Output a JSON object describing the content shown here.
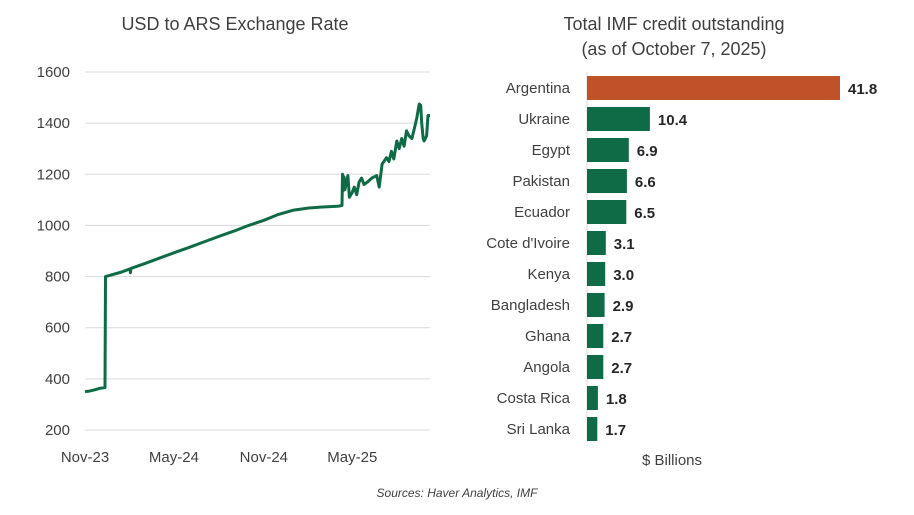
{
  "source": "Sources: Haver Analytics, IMF",
  "chart_data": [
    {
      "type": "line",
      "title": "USD to ARS Exchange Rate",
      "xlabel": "",
      "ylabel": "",
      "ylim": [
        200,
        1600
      ],
      "yticks": [
        200,
        400,
        600,
        800,
        1000,
        1200,
        1400,
        1600
      ],
      "xticklabels": [
        "Nov-23",
        "May-24",
        "Nov-24",
        "May-25"
      ],
      "xticks": [
        "2023-11-01",
        "2024-05-01",
        "2024-11-01",
        "2025-05-01"
      ],
      "grid": true,
      "series": [
        {
          "color": "#0f6b45",
          "x": [
            "2023-11-01",
            "2023-11-10",
            "2023-11-20",
            "2023-12-01",
            "2023-12-12",
            "2023-12-13",
            "2024-01-15",
            "2024-02-01",
            "2024-02-02",
            "2024-02-03",
            "2024-03-01",
            "2024-04-01",
            "2024-05-01",
            "2024-06-01",
            "2024-07-01",
            "2024-08-01",
            "2024-09-01",
            "2024-10-01",
            "2024-11-01",
            "2024-12-01",
            "2025-01-01",
            "2025-02-01",
            "2025-03-01",
            "2025-04-01",
            "2025-04-10",
            "2025-04-11",
            "2025-04-12",
            "2025-04-14",
            "2025-04-16",
            "2025-04-18",
            "2025-04-22",
            "2025-04-25",
            "2025-05-01",
            "2025-05-05",
            "2025-05-10",
            "2025-05-15",
            "2025-05-20",
            "2025-05-25",
            "2025-06-01",
            "2025-06-10",
            "2025-06-20",
            "2025-06-25",
            "2025-07-01",
            "2025-07-10",
            "2025-07-15",
            "2025-07-20",
            "2025-07-25",
            "2025-07-31",
            "2025-08-05",
            "2025-08-10",
            "2025-08-15",
            "2025-08-20",
            "2025-08-25",
            "2025-08-31",
            "2025-09-05",
            "2025-09-10",
            "2025-09-15",
            "2025-09-18",
            "2025-09-20",
            "2025-09-23",
            "2025-09-25",
            "2025-09-30",
            "2025-10-03",
            "2025-10-07"
          ],
          "y": [
            350,
            352,
            357,
            363,
            366,
            800,
            818,
            830,
            815,
            832,
            850,
            872,
            893,
            914,
            935,
            957,
            978,
            1000,
            1020,
            1043,
            1060,
            1068,
            1072,
            1075,
            1078,
            1200,
            1135,
            1190,
            1140,
            1160,
            1195,
            1110,
            1130,
            1150,
            1120,
            1170,
            1185,
            1160,
            1170,
            1185,
            1195,
            1150,
            1240,
            1265,
            1250,
            1290,
            1260,
            1330,
            1300,
            1340,
            1310,
            1370,
            1350,
            1340,
            1380,
            1420,
            1475,
            1470,
            1400,
            1340,
            1330,
            1350,
            1430,
            1430
          ]
        }
      ]
    },
    {
      "type": "bar",
      "orientation": "horizontal",
      "title": [
        "Total IMF credit outstanding",
        "(as of October 7, 2025)"
      ],
      "xlabel": "$ Billions",
      "categories": [
        "Argentina",
        "Ukraine",
        "Egypt",
        "Pakistan",
        "Ecuador",
        "Cote d'Ivoire",
        "Kenya",
        "Bangladesh",
        "Ghana",
        "Angola",
        "Costa Rica",
        "Sri Lanka"
      ],
      "values": [
        41.8,
        10.4,
        6.9,
        6.6,
        6.5,
        3.1,
        3.0,
        2.9,
        2.7,
        2.7,
        1.8,
        1.7
      ],
      "value_labels": [
        "41.8",
        "10.4",
        "6.9",
        "6.6",
        "6.5",
        "3.1",
        "3.0",
        "2.9",
        "2.7",
        "2.7",
        "1.8",
        "1.7"
      ],
      "colors": [
        "#c0522a",
        "#0f6b45",
        "#0f6b45",
        "#0f6b45",
        "#0f6b45",
        "#0f6b45",
        "#0f6b45",
        "#0f6b45",
        "#0f6b45",
        "#0f6b45",
        "#0f6b45",
        "#0f6b45"
      ],
      "xlim": [
        0,
        41.8
      ]
    }
  ]
}
